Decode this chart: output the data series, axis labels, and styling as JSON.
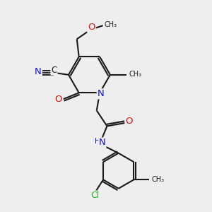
{
  "bg_color": "#eeeeee",
  "bond_color": "#1a1a1a",
  "N_color": "#1414cc",
  "O_color": "#cc1414",
  "Cl_color": "#22aa22",
  "line_width": 1.5,
  "font_size": 8.5,
  "figsize": [
    3.0,
    3.0
  ],
  "dpi": 100,
  "xlim": [
    0,
    10
  ],
  "ylim": [
    0,
    10
  ]
}
